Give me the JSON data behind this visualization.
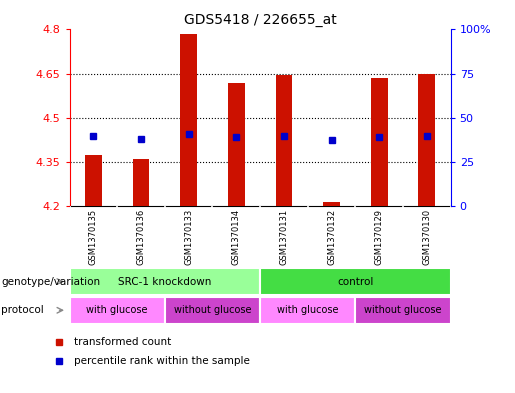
{
  "title": "GDS5418 / 226655_at",
  "samples": [
    "GSM1370135",
    "GSM1370136",
    "GSM1370133",
    "GSM1370134",
    "GSM1370131",
    "GSM1370132",
    "GSM1370129",
    "GSM1370130"
  ],
  "bar_bottoms": [
    4.2,
    4.2,
    4.2,
    4.2,
    4.2,
    4.2,
    4.2,
    4.2
  ],
  "bar_tops": [
    4.375,
    4.36,
    4.785,
    4.62,
    4.645,
    4.215,
    4.635,
    4.65
  ],
  "percentile_values": [
    4.44,
    4.43,
    4.445,
    4.435,
    4.44,
    4.425,
    4.435,
    4.44
  ],
  "ylim": [
    4.2,
    4.8
  ],
  "yticks_left": [
    4.2,
    4.35,
    4.5,
    4.65,
    4.8
  ],
  "yticks_right_labels": [
    "0",
    "25",
    "50",
    "75",
    "100%"
  ],
  "yticks_right_vals": [
    4.2,
    4.35,
    4.5,
    4.65,
    4.8
  ],
  "bar_color": "#CC1100",
  "percentile_color": "#0000CC",
  "plot_bg": "#FFFFFF",
  "genotype_groups": [
    {
      "label": "SRC-1 knockdown",
      "start": 0,
      "end": 4,
      "color": "#99FF99"
    },
    {
      "label": "control",
      "start": 4,
      "end": 8,
      "color": "#44DD44"
    }
  ],
  "protocol_groups": [
    {
      "label": "with glucose",
      "start": 0,
      "end": 2,
      "color": "#FF88FF"
    },
    {
      "label": "without glucose",
      "start": 2,
      "end": 4,
      "color": "#CC44CC"
    },
    {
      "label": "with glucose",
      "start": 4,
      "end": 6,
      "color": "#FF88FF"
    },
    {
      "label": "without glucose",
      "start": 6,
      "end": 8,
      "color": "#CC44CC"
    }
  ],
  "legend_items": [
    {
      "label": "transformed count",
      "color": "#CC1100"
    },
    {
      "label": "percentile rank within the sample",
      "color": "#0000CC"
    }
  ],
  "genotype_label": "genotype/variation",
  "protocol_label": "protocol",
  "sample_bg": "#C8C8C8",
  "bar_width": 0.35
}
